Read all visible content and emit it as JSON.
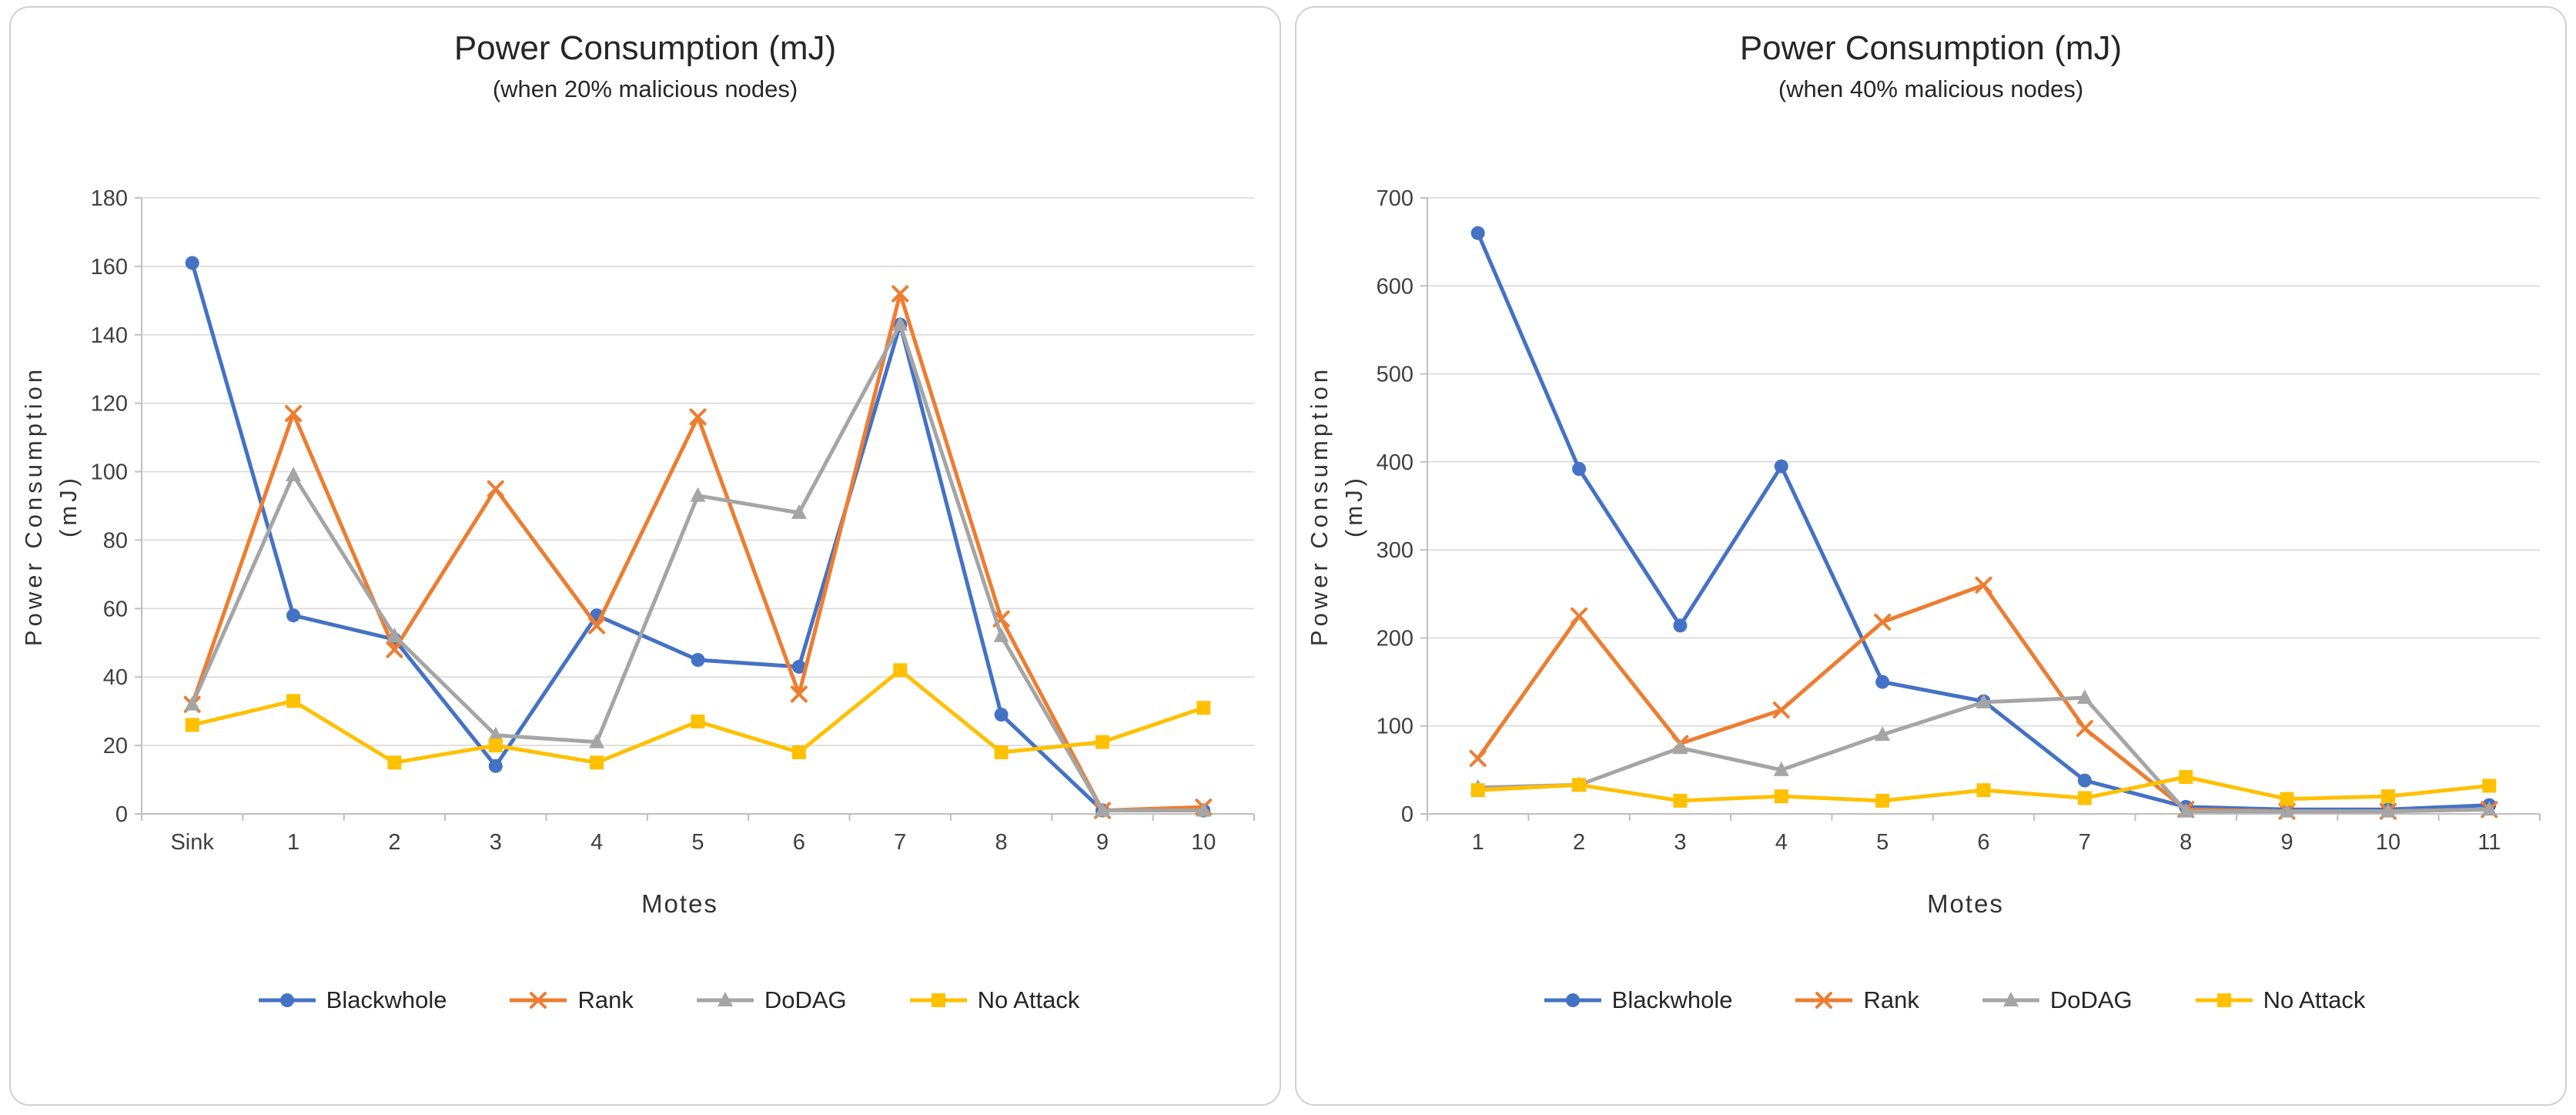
{
  "page": {
    "background": "#ffffff"
  },
  "chart_data": [
    {
      "type": "line",
      "title": "Power Consumption (mJ)",
      "subtitle": "(when 20% malicious nodes)",
      "xlabel": "Motes",
      "ylabel": "Power Consumption (mJ)",
      "ylabel_lines": [
        "Power Consumption",
        "(mJ)"
      ],
      "categories": [
        "Sink",
        "1",
        "2",
        "3",
        "4",
        "5",
        "6",
        "7",
        "8",
        "9",
        "10"
      ],
      "ylim": [
        0,
        180
      ],
      "ytick_step": 20,
      "grid": "horizontal",
      "legend_position": "bottom",
      "series": [
        {
          "name": "Blackwhole",
          "color": "#4472C4",
          "marker": "circle",
          "values": [
            161,
            58,
            51,
            14,
            58,
            45,
            43,
            143,
            29,
            1,
            1
          ]
        },
        {
          "name": "Rank",
          "color": "#ED7D31",
          "marker": "x",
          "values": [
            32,
            117,
            48,
            95,
            55,
            116,
            35,
            152,
            57,
            1,
            2
          ]
        },
        {
          "name": "DoDAG",
          "color": "#A5A5A5",
          "marker": "triangle",
          "values": [
            32,
            99,
            52,
            23,
            21,
            93,
            88,
            143,
            52,
            1,
            1
          ]
        },
        {
          "name": "No Attack",
          "color": "#FFC000",
          "marker": "square",
          "values": [
            26,
            33,
            15,
            20,
            15,
            27,
            18,
            42,
            18,
            21,
            31
          ]
        }
      ]
    },
    {
      "type": "line",
      "title": "Power Consumption (mJ)",
      "subtitle": "(when 40% malicious nodes)",
      "xlabel": "Motes",
      "ylabel": "Power Consumption (mJ)",
      "ylabel_lines": [
        "Power Consumption",
        "(mJ)"
      ],
      "categories": [
        "1",
        "2",
        "3",
        "4",
        "5",
        "6",
        "7",
        "8",
        "9",
        "10",
        "11"
      ],
      "ylim": [
        0,
        700
      ],
      "ytick_step": 100,
      "grid": "horizontal",
      "legend_position": "bottom",
      "series": [
        {
          "name": "Blackwhole",
          "color": "#4472C4",
          "marker": "circle",
          "values": [
            660,
            392,
            214,
            395,
            150,
            128,
            38,
            8,
            5,
            5,
            10
          ]
        },
        {
          "name": "Rank",
          "color": "#ED7D31",
          "marker": "x",
          "values": [
            63,
            225,
            80,
            118,
            218,
            260,
            97,
            5,
            3,
            3,
            5
          ]
        },
        {
          "name": "DoDAG",
          "color": "#A5A5A5",
          "marker": "triangle",
          "values": [
            30,
            33,
            75,
            50,
            90,
            127,
            132,
            3,
            3,
            3,
            5
          ]
        },
        {
          "name": "No Attack",
          "color": "#FFC000",
          "marker": "square",
          "values": [
            27,
            33,
            15,
            20,
            15,
            27,
            18,
            42,
            17,
            20,
            32
          ]
        }
      ]
    }
  ]
}
